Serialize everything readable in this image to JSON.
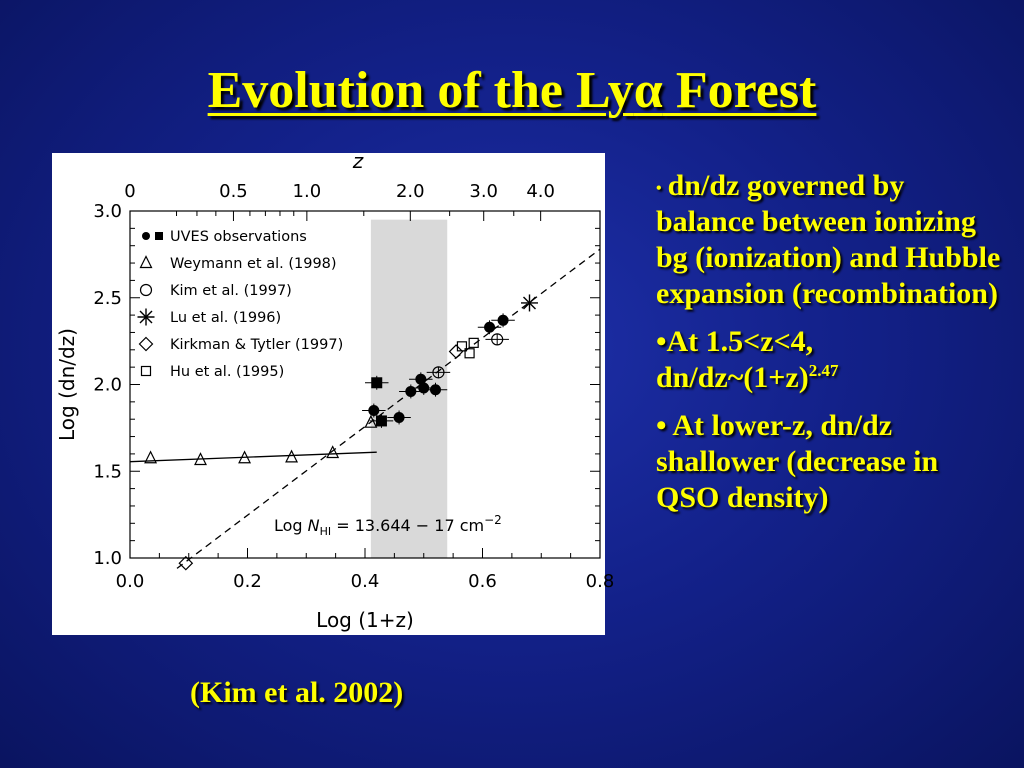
{
  "slide": {
    "title_main": "Evolution of the Ly",
    "title_greek": "α",
    "title_end": " Forest",
    "citation": "(Kim et al. 2002)"
  },
  "bullets": [
    {
      "marker": "•",
      "text": "dn/dz governed by balance between ionizing bg (ionization) and Hubble expansion (recombination)"
    },
    {
      "marker": "•",
      "text_line1": "At 1.5<z<4,",
      "text_line2": "dn/dz~(1+z)",
      "superscript": "2.47"
    },
    {
      "marker": "•",
      "text": "At lower-z, dn/dz shallower (decrease in QSO density)"
    }
  ],
  "colors": {
    "background": "#13218a",
    "text": "#ffff00",
    "band": "#d9d9d9"
  },
  "chart_data": {
    "type": "scatter",
    "xlabel": "Log (1+z)",
    "ylabel": "Log (dn/dz)",
    "top_axis_label": "z",
    "xlim": [
      0.0,
      0.8
    ],
    "ylim": [
      1.0,
      3.0
    ],
    "x_ticks": [
      "0.0",
      "0.2",
      "0.4",
      "0.6",
      "0.8"
    ],
    "y_ticks": [
      "1.0",
      "1.5",
      "2.0",
      "2.5",
      "3.0"
    ],
    "top_ticks": [
      {
        "z": 0,
        "label": "0"
      },
      {
        "z": 0.5,
        "label": "0.5"
      },
      {
        "z": 1.0,
        "label": "1.0"
      },
      {
        "z": 2.0,
        "label": "2.0"
      },
      {
        "z": 3.0,
        "label": "3.0"
      },
      {
        "z": 4.0,
        "label": "4.0"
      }
    ],
    "annotation": {
      "prefix": "Log ",
      "symbol": "N",
      "subscript": "HI",
      "text": " = 13.644 − 17 cm",
      "superscript": "−2"
    },
    "shaded_band": {
      "x_range": [
        0.41,
        0.54
      ],
      "y_range": [
        1.0,
        2.95
      ]
    },
    "legend": {
      "placement": "top-left",
      "entries": [
        {
          "marker": "filled",
          "label": "UVES observations"
        },
        {
          "marker": "triangle",
          "label": "Weymann et al. (1998)"
        },
        {
          "marker": "circle",
          "label": "Kim et al. (1997)"
        },
        {
          "marker": "asterisk",
          "label": "Lu et al. (1996)"
        },
        {
          "marker": "diamond",
          "label": "Kirkman & Tytler (1997)"
        },
        {
          "marker": "square",
          "label": "Hu et al. (1995)"
        }
      ]
    },
    "lines": [
      {
        "style": "solid",
        "x": [
          0.0,
          0.42
        ],
        "y": [
          1.555,
          1.61
        ]
      },
      {
        "style": "dashed",
        "x": [
          0.08,
          0.8
        ],
        "y": [
          0.94,
          2.78
        ]
      }
    ],
    "series": [
      {
        "name": "UVES observations",
        "marker": "circle-filled",
        "points": [
          {
            "x": 0.415,
            "y": 1.85,
            "xerr": 0.02,
            "yerr": 0.04
          },
          {
            "x": 0.458,
            "y": 1.81,
            "xerr": 0.02,
            "yerr": 0.04
          },
          {
            "x": 0.478,
            "y": 1.96,
            "xerr": 0.02,
            "yerr": 0.04
          },
          {
            "x": 0.495,
            "y": 2.03,
            "xerr": 0.02,
            "yerr": 0.04
          },
          {
            "x": 0.5,
            "y": 1.98,
            "xerr": 0.02,
            "yerr": 0.04
          },
          {
            "x": 0.52,
            "y": 1.97,
            "xerr": 0.02,
            "yerr": 0.04
          },
          {
            "x": 0.612,
            "y": 2.33,
            "xerr": 0.02,
            "yerr": 0.04
          },
          {
            "x": 0.635,
            "y": 2.37,
            "xerr": 0.02,
            "yerr": 0.04
          }
        ]
      },
      {
        "name": "UVES observations",
        "marker": "square-filled",
        "points": [
          {
            "x": 0.42,
            "y": 2.01,
            "xerr": 0.02,
            "yerr": 0.04
          },
          {
            "x": 0.428,
            "y": 1.79,
            "xerr": 0.02,
            "yerr": 0.04
          }
        ]
      },
      {
        "name": "Weymann et al. (1998)",
        "marker": "triangle-open",
        "points": [
          {
            "x": 0.035,
            "y": 1.575
          },
          {
            "x": 0.12,
            "y": 1.565
          },
          {
            "x": 0.195,
            "y": 1.575
          },
          {
            "x": 0.275,
            "y": 1.58
          },
          {
            "x": 0.345,
            "y": 1.605
          },
          {
            "x": 0.41,
            "y": 1.78
          }
        ]
      },
      {
        "name": "Kim et al. (1997)",
        "marker": "circle-open",
        "points": [
          {
            "x": 0.525,
            "y": 2.07,
            "xerr": 0.02,
            "yerr": 0.03
          },
          {
            "x": 0.625,
            "y": 2.26,
            "xerr": 0.02,
            "yerr": 0.03
          }
        ]
      },
      {
        "name": "Lu et al. (1996)",
        "marker": "asterisk",
        "points": [
          {
            "x": 0.68,
            "y": 2.47
          }
        ]
      },
      {
        "name": "Kirkman & Tytler (1997)",
        "marker": "diamond-open",
        "points": [
          {
            "x": 0.555,
            "y": 2.19
          },
          {
            "x": 0.095,
            "y": 0.97
          }
        ]
      },
      {
        "name": "Hu et al. (1995)",
        "marker": "square-open",
        "points": [
          {
            "x": 0.565,
            "y": 2.22
          },
          {
            "x": 0.578,
            "y": 2.18
          },
          {
            "x": 0.585,
            "y": 2.24
          }
        ]
      }
    ]
  }
}
